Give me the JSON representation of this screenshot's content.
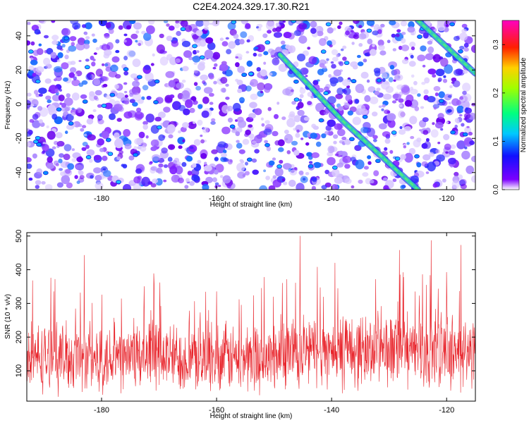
{
  "title": "C2E4.2024.329.17.30.R21",
  "colors": {
    "line": "#e8232a",
    "ridge": "#33c9b8",
    "bg": "#ffffff"
  },
  "chart_data": [
    {
      "type": "heatmap",
      "xlabel": "Height of straight line (km)",
      "ylabel": "Frequency (Hz)",
      "xlim": [
        -193,
        -115
      ],
      "ylim": [
        -50,
        49
      ],
      "xticks": [
        -180,
        -160,
        -140,
        -120
      ],
      "yticks": [
        40,
        20,
        0,
        -20,
        -40
      ],
      "grid": false,
      "colorbar": {
        "label": "Normalized spectral amplitude",
        "range": [
          0.0,
          0.35
        ],
        "ticks": [
          0.0,
          0.1,
          0.2,
          0.3
        ],
        "colormap": [
          "#ffffff",
          "#7c00ff",
          "#0000ff",
          "#00ffff",
          "#00ff00",
          "#ffff00",
          "#ff0000",
          "#ff00ff"
        ]
      },
      "ridges": [
        {
          "x": [
            -149,
            -138,
            -125
          ],
          "y": [
            29,
            -10,
            -50
          ]
        },
        {
          "x": [
            -125,
            -115
          ],
          "y": [
            49,
            18
          ]
        }
      ]
    },
    {
      "type": "line",
      "xlabel": "Height of straight line (km)",
      "ylabel": "SNR (10 * v/v)",
      "xlim": [
        -193,
        -115
      ],
      "ylim": [
        10,
        510
      ],
      "xticks": [
        -180,
        -160,
        -140,
        -120
      ],
      "yticks": [
        100,
        200,
        300,
        400,
        500
      ],
      "grid": false,
      "baseline_segments": [
        {
          "x": [
            -193,
            -149
          ],
          "mean": 140,
          "spread": 120
        },
        {
          "x": [
            -149,
            -115
          ],
          "mean": 160,
          "spread": 130
        }
      ],
      "peaks": [
        {
          "x": -145.5,
          "y": 500
        },
        {
          "x": -122.7,
          "y": 487
        },
        {
          "x": -117.5,
          "y": 473
        },
        {
          "x": -128.2,
          "y": 458
        },
        {
          "x": -183,
          "y": 443
        },
        {
          "x": -139.4,
          "y": 420
        },
        {
          "x": -142.5,
          "y": 408
        }
      ]
    }
  ]
}
